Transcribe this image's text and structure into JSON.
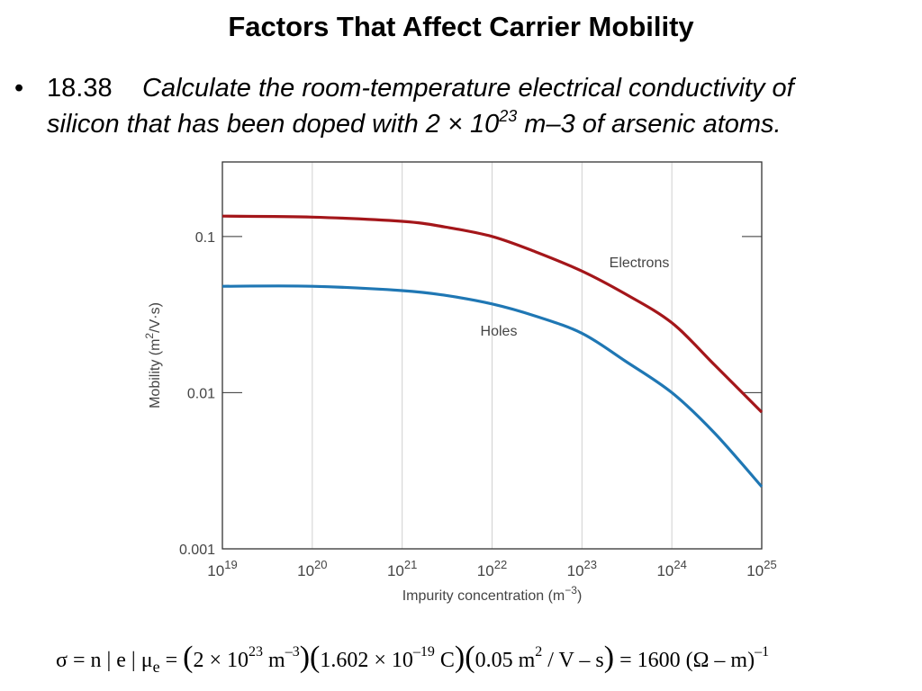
{
  "slide": {
    "title": "Factors That Affect Carrier Mobility",
    "problem": {
      "bullet": "•",
      "number": "18.38",
      "line1": "Calculate the room-temperature electrical conductivity of",
      "line2_pre": "silicon that has been doped with 2 × 10",
      "line2_exp": "23",
      "line2_post": " m–3 of arsenic atoms."
    },
    "equation": {
      "lhs": "σ = n | e | μ",
      "sub_e": "e",
      "eq1": " = ",
      "factor1_mant": "2 × 10",
      "factor1_exp": "23",
      "factor1_unit": " m",
      "factor1_unit_exp": "–3",
      "factor2_mant": "1.602 × 10",
      "factor2_exp": "–19",
      "factor2_unit": " C",
      "factor3_val": "0.05 m",
      "factor3_exp": "2",
      "factor3_unit": " / V – s",
      "result": " = 1600 (Ω – m)",
      "result_exp": "–1"
    }
  },
  "chart_data": {
    "type": "line",
    "xlabel": "Impurity concentration (m",
    "xlabel_exp": "−3",
    "xlabel_close": ")",
    "ylabel": "Mobility (m",
    "ylabel_exp": "2",
    "ylabel_close": "/V·s)",
    "x_scale": "log",
    "y_scale": "log",
    "xlim": [
      1e+19,
      1e+25
    ],
    "ylim": [
      0.001,
      0.3
    ],
    "x_ticks": [
      {
        "value": 1e+19,
        "base": "10",
        "exp": "19"
      },
      {
        "value": 1e+20,
        "base": "10",
        "exp": "20"
      },
      {
        "value": 1e+21,
        "base": "10",
        "exp": "21"
      },
      {
        "value": 1e+22,
        "base": "10",
        "exp": "22"
      },
      {
        "value": 1e+23,
        "base": "10",
        "exp": "23"
      },
      {
        "value": 1e+24,
        "base": "10",
        "exp": "24"
      },
      {
        "value": 1e+25,
        "base": "10",
        "exp": "25"
      }
    ],
    "y_ticks": [
      {
        "value": 0.1,
        "label": "0.1"
      },
      {
        "value": 0.01,
        "label": "0.01"
      },
      {
        "value": 0.001,
        "label": "0.001"
      }
    ],
    "grid": "vertical",
    "series": [
      {
        "name": "Electrons",
        "color": "#a4161a",
        "x": [
          1e+19,
          1e+20,
          1e+21,
          3e+21,
          1e+22,
          3e+22,
          1e+23,
          3e+23,
          1e+24,
          3e+24,
          1e+25
        ],
        "y": [
          0.135,
          0.133,
          0.125,
          0.115,
          0.1,
          0.08,
          0.06,
          0.043,
          0.028,
          0.015,
          0.0075
        ]
      },
      {
        "name": "Holes",
        "color": "#1f77b4",
        "x": [
          1e+19,
          1e+20,
          1e+21,
          3e+21,
          1e+22,
          3e+22,
          1e+23,
          3e+23,
          1e+24,
          3e+24,
          1e+25
        ],
        "y": [
          0.048,
          0.048,
          0.045,
          0.042,
          0.037,
          0.031,
          0.024,
          0.016,
          0.01,
          0.0055,
          0.0025
        ]
      }
    ]
  }
}
